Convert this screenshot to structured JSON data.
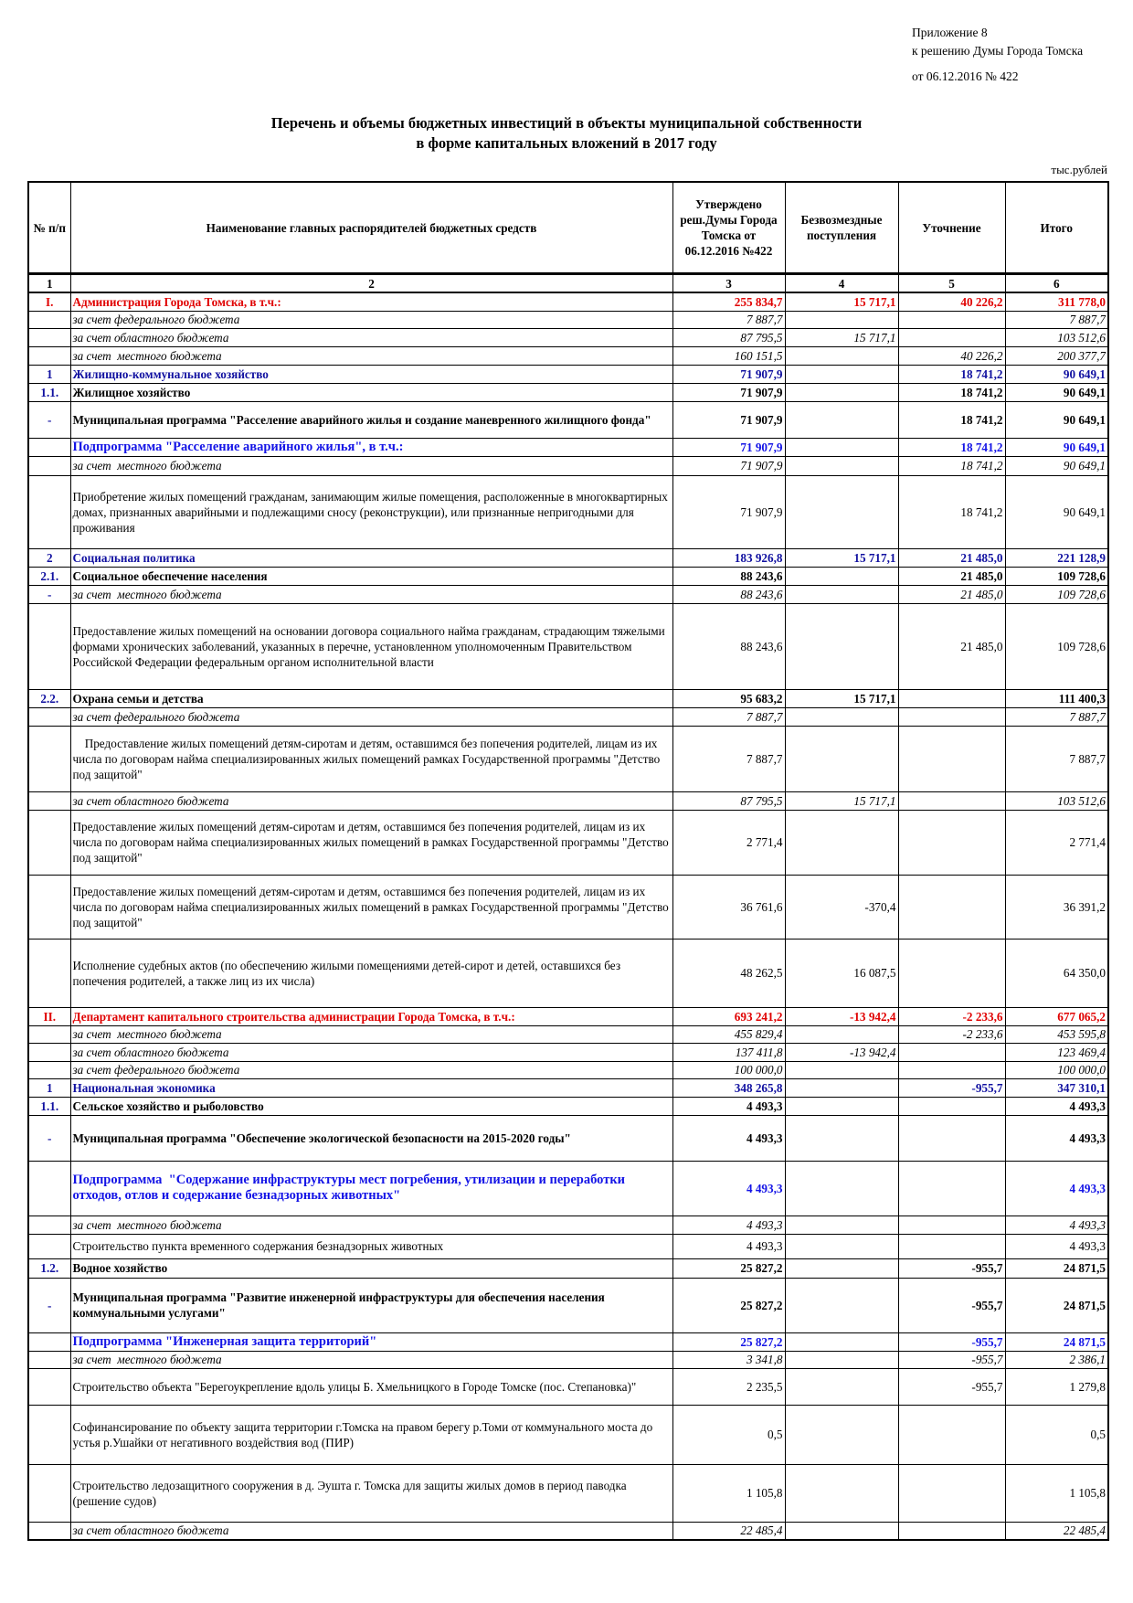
{
  "annex": {
    "line1": "Приложение 8",
    "line2": "к решению Думы Города Томска",
    "date": "от 06.12.2016  № 422"
  },
  "title": {
    "line1": "Перечень и объемы бюджетных инвестиций в объекты муниципальной собственности",
    "line2": "в форме капитальных вложений в 2017 году"
  },
  "units": "тыс.рублей",
  "headers": [
    "№ п/п",
    "Наименование главных распорядителей бюджетных средств",
    "Утверждено реш.Думы Города Томска от 06.12.2016 №422",
    "Безвозмездные поступления",
    "Уточнение",
    "Итого"
  ],
  "column_numbers": [
    "1",
    "2",
    "3",
    "4",
    "5",
    "6"
  ],
  "rows": [
    {
      "type": "red",
      "cells": [
        "I.",
        "Администрация Города Томска, в т.ч.:",
        "255 834,7",
        "15 717,1",
        "40 226,2",
        "311 778,0"
      ]
    },
    {
      "type": "src",
      "cells": [
        "",
        "за счет федерального бюджета",
        "7 887,7",
        "",
        "",
        "7 887,7"
      ]
    },
    {
      "type": "src",
      "cells": [
        "",
        "за счет областного бюджета",
        "87 795,5",
        "15 717,1",
        "",
        "103 512,6"
      ]
    },
    {
      "type": "src",
      "cells": [
        "",
        "за счет  местного бюджета",
        "160 151,5",
        "",
        "40 226,2",
        "200 377,7"
      ]
    },
    {
      "type": "blue",
      "cells": [
        "1",
        "Жилищно-коммунальное хозяйство",
        "71 907,9",
        "",
        "18 741,2",
        "90 649,1"
      ]
    },
    {
      "type": "bold",
      "cells": [
        "1.1.",
        "Жилищное хозяйство",
        "71 907,9",
        "",
        "18 741,2",
        "90 649,1"
      ]
    },
    {
      "type": "bold",
      "cells": [
        "-",
        "Муниципальная программа \"Расселение аварийного жилья и создание маневренного жилищного фонда\"",
        "71 907,9",
        "",
        "18 741,2",
        "90 649,1"
      ]
    },
    {
      "type": "sub",
      "cells": [
        "",
        "Подпрограмма \"Расселение аварийного жилья\", в т.ч.:",
        "71 907,9",
        "",
        "18 741,2",
        "90 649,1"
      ]
    },
    {
      "type": "src",
      "cells": [
        "",
        "за счет  местного бюджета",
        "71 907,9",
        "",
        "18 741,2",
        "90 649,1"
      ]
    },
    {
      "type": "plain",
      "cells": [
        "",
        "Приобретение жилых помещений гражданам, занимающим жилые помещения, расположенные в многоквартирных домах, признанных аварийными и подлежащими сносу (реконструкции), или признанные непригодными для проживания",
        "71 907,9",
        "",
        "18 741,2",
        "90 649,1"
      ]
    },
    {
      "type": "blue",
      "cells": [
        "2",
        "Социальная политика",
        "183 926,8",
        "15 717,1",
        "21 485,0",
        "221 128,9"
      ]
    },
    {
      "type": "bold",
      "cells": [
        "2.1.",
        "Социальное обеспечение населения",
        "88 243,6",
        "",
        "21 485,0",
        "109 728,6"
      ]
    },
    {
      "type": "src",
      "cells": [
        "-",
        "за счет  местного бюджета",
        "88 243,6",
        "",
        "21 485,0",
        "109 728,6"
      ]
    },
    {
      "type": "plain",
      "cells": [
        "",
        "Предоставление жилых помещений на основании договора социального найма гражданам, страдающим тяжелыми формами хронических заболеваний, указанных в перечне, установленном уполномоченным Правительством Российской Федерации федеральным органом исполнительной власти",
        "88 243,6",
        "",
        "21 485,0",
        "109 728,6"
      ]
    },
    {
      "type": "bold",
      "cells": [
        "2.2.",
        "Охрана семьи и детства",
        "95 683,2",
        "15 717,1",
        "",
        "111 400,3"
      ]
    },
    {
      "type": "src",
      "cells": [
        "",
        "за счет федерального бюджета",
        "7 887,7",
        "",
        "",
        "7 887,7"
      ]
    },
    {
      "type": "plain",
      "cells": [
        "",
        "    Предоставление жилых помещений детям-сиротам и детям, оставшимся без попечения родителей, лицам из их числа по договорам найма специализированных жилых помещений рамках Государственной программы \"Детство под защитой\"",
        "7 887,7",
        "",
        "",
        "7 887,7"
      ]
    },
    {
      "type": "src",
      "cells": [
        "",
        "за счет областного бюджета",
        "87 795,5",
        "15 717,1",
        "",
        "103 512,6"
      ]
    },
    {
      "type": "plain",
      "cells": [
        "",
        "Предоставление жилых помещений детям-сиротам и детям, оставшимся без попечения родителей, лицам из их числа по договорам найма специализированных жилых помещений в рамках Государственной программы \"Детство под защитой\"",
        "2 771,4",
        "",
        "",
        "2 771,4"
      ]
    },
    {
      "type": "plain",
      "cells": [
        "",
        "Предоставление жилых помещений детям-сиротам и детям, оставшимся без попечения родителей, лицам из их числа по договорам найма специализированных жилых помещений в рамках Государственной программы \"Детство под защитой\"",
        "36 761,6",
        "-370,4",
        "",
        "36 391,2"
      ]
    },
    {
      "type": "plain",
      "cells": [
        "",
        "Исполнение судебных актов (по обеспечению жилыми помещениями детей-сирот и детей, оставшихся без попечения родителей, а также лиц из их числа)",
        "48 262,5",
        "16 087,5",
        "",
        "64 350,0"
      ]
    },
    {
      "type": "red",
      "cells": [
        "II.",
        "Департамент капитального строительства администрации Города Томска, в т.ч.:",
        "693 241,2",
        "-13 942,4",
        "-2 233,6",
        "677 065,2"
      ]
    },
    {
      "type": "src",
      "cells": [
        "",
        "за счет  местного бюджета",
        "455 829,4",
        "",
        "-2 233,6",
        "453 595,8"
      ]
    },
    {
      "type": "src",
      "cells": [
        "",
        "за счет областного бюджета",
        "137 411,8",
        "-13 942,4",
        "",
        "123 469,4"
      ]
    },
    {
      "type": "src",
      "cells": [
        "",
        "за счет федерального бюджета",
        "100 000,0",
        "",
        "",
        "100 000,0"
      ]
    },
    {
      "type": "blue",
      "cells": [
        "1",
        "Национальная экономика",
        "348 265,8",
        "",
        "-955,7",
        "347 310,1"
      ]
    },
    {
      "type": "bold",
      "cells": [
        "1.1.",
        "Сельское хозяйство и рыболовство",
        "4 493,3",
        "",
        "",
        "4 493,3"
      ]
    },
    {
      "type": "bold",
      "cells": [
        "-",
        "Муниципальная программа \"Обеспечение экологической безопасности на 2015-2020 годы\"",
        "4 493,3",
        "",
        "",
        "4 493,3"
      ]
    },
    {
      "type": "sub",
      "cells": [
        "",
        "Подпрограмма  \"Содержание инфраструктуры мест погребения, утилизации и переработки отходов, отлов и содержание безнадзорных животных\"",
        "4 493,3",
        "",
        "",
        "4 493,3"
      ]
    },
    {
      "type": "src",
      "cells": [
        "",
        "за счет  местного бюджета",
        "4 493,3",
        "",
        "",
        "4 493,3"
      ]
    },
    {
      "type": "plain",
      "cells": [
        "",
        "Строительство пункта временного содержания безнадзорных животных",
        "4 493,3",
        "",
        "",
        "4 493,3"
      ]
    },
    {
      "type": "bold",
      "cells": [
        "1.2.",
        "Водное хозяйство",
        "25 827,2",
        "",
        "-955,7",
        "24 871,5"
      ]
    },
    {
      "type": "bold",
      "cells": [
        "-",
        "Муниципальная программа \"Развитие инженерной инфраструктуры для обеспечения населения коммунальными услугами\"",
        "25 827,2",
        "",
        "-955,7",
        "24 871,5"
      ]
    },
    {
      "type": "sub",
      "cells": [
        "",
        "Подпрограмма \"Инженерная защита территорий\"",
        "25 827,2",
        "",
        "-955,7",
        "24 871,5"
      ]
    },
    {
      "type": "src",
      "cells": [
        "",
        "за счет  местного бюджета",
        "3 341,8",
        "",
        "-955,7",
        "2 386,1"
      ]
    },
    {
      "type": "plain",
      "cells": [
        "",
        "Строительство объекта \"Берегоукрепление вдоль улицы Б. Хмельницкого в Городе Томске (пос. Степановка)\"",
        "2 235,5",
        "",
        "-955,7",
        "1 279,8"
      ]
    },
    {
      "type": "plain",
      "cells": [
        "",
        "Софинансирование по объекту защита территории г.Томска на правом берегу р.Томи от коммунального моста до устья р.Ушайки от негативного воздействия вод (ПИР)",
        "0,5",
        "",
        "",
        "0,5"
      ]
    },
    {
      "type": "plain",
      "cells": [
        "",
        "Строительство ледозащитного сооружения в д. Эушта г. Томска для защиты жилых домов в период паводка (решение судов)",
        "1 105,8",
        "",
        "",
        "1 105,8"
      ]
    },
    {
      "type": "src",
      "cells": [
        "",
        "за счет областного бюджета",
        "22 485,4",
        "",
        "",
        "22 485,4"
      ]
    }
  ]
}
